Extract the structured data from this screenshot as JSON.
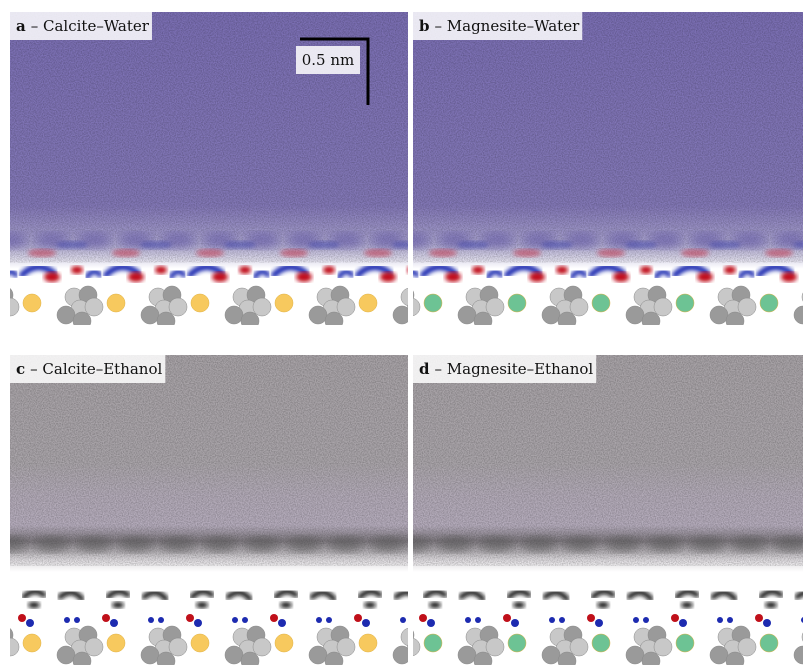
{
  "panels": [
    {
      "letter": "a",
      "title": "– Calcite–Water"
    },
    {
      "letter": "b",
      "title": "– Magnesite–Water"
    },
    {
      "letter": "c",
      "title": "– Calcite–Ethanol"
    },
    {
      "letter": "d",
      "title": "– Magnesite–Ethanol"
    }
  ],
  "scale_bar": "0.5 nm"
}
